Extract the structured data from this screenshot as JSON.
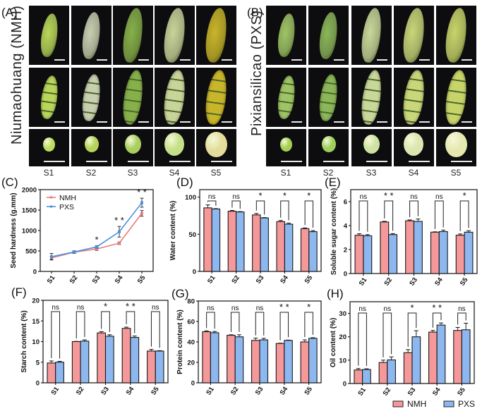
{
  "figure": {
    "panel_labels": [
      "(A)",
      "(B)",
      "(C)",
      "(D)",
      "(E)",
      "(F)",
      "(G)",
      "(H)"
    ],
    "photos": {
      "A": {
        "label": "(A)",
        "cultivar": "Niumaohuang (NMH)",
        "stages": [
          "S1",
          "S2",
          "S3",
          "S4",
          "S5"
        ],
        "rows": [
          "whole pod",
          "opened pod",
          "seed"
        ],
        "pod_colors": [
          "#b9d65a",
          "#c8cfb0",
          "#86b04a",
          "#c8d49a",
          "#c9b52a"
        ]
      },
      "B": {
        "label": "(B)",
        "cultivar": "Pixiansilicao (PXS)",
        "stages": [
          "S1",
          "S2",
          "S3",
          "S4",
          "S5"
        ],
        "rows": [
          "whole pod",
          "opened pod",
          "seed"
        ],
        "pod_colors": [
          "#9fc466",
          "#8bb65a",
          "#c9d89a",
          "#c9d67a",
          "#c8d46a"
        ]
      }
    },
    "legend": {
      "items": [
        {
          "name": "NMH",
          "color": "#f4989a"
        },
        {
          "name": "PXS",
          "color": "#8cb8ef"
        }
      ]
    },
    "colors": {
      "NMH": "#f4989a",
      "PXS": "#8cb8ef",
      "NMH_line": "#e8797b",
      "PXS_line": "#4a90e2"
    }
  },
  "chart_data": [
    {
      "id": "C",
      "label": "(C)",
      "type": "line",
      "title": "",
      "xlabel": "",
      "ylabel": "Seed hardness (g.mm)",
      "categories": [
        "S1",
        "S2",
        "S3",
        "S4",
        "S5"
      ],
      "ylim": [
        0,
        2000
      ],
      "yticks": [
        0,
        500,
        1000,
        1500,
        2000
      ],
      "series": [
        {
          "name": "NMH",
          "values": [
            330,
            470,
            550,
            690,
            1420
          ],
          "errors": [
            40,
            30,
            35,
            30,
            70
          ]
        },
        {
          "name": "PXS",
          "values": [
            360,
            475,
            600,
            970,
            1680
          ],
          "errors": [
            80,
            30,
            30,
            130,
            110
          ]
        }
      ],
      "significance": [
        "",
        "",
        "*",
        "**",
        "**"
      ],
      "legend": "top-left",
      "grid": false
    },
    {
      "id": "D",
      "label": "(D)",
      "type": "bar",
      "ylabel": "Water content (%)",
      "categories": [
        "S1",
        "S2",
        "S3",
        "S4",
        "S5"
      ],
      "ylim": [
        0,
        110
      ],
      "yticks": [
        0,
        50,
        100
      ],
      "series": [
        {
          "name": "NMH",
          "values": [
            85.5,
            81,
            76,
            67,
            57.5
          ],
          "errors": [
            4,
            1,
            2,
            1.5,
            1
          ]
        },
        {
          "name": "PXS",
          "values": [
            84,
            80,
            72,
            63.5,
            53.5
          ],
          "errors": [
            0.5,
            0.5,
            0.5,
            1.5,
            1.5
          ]
        }
      ],
      "significance": [
        "ns",
        "ns",
        "*",
        "*",
        "*"
      ]
    },
    {
      "id": "E",
      "label": "(E)",
      "type": "bar",
      "ylabel": "Soluble sugar content (%)",
      "categories": [
        "S1",
        "S2",
        "S3",
        "S4",
        "S5"
      ],
      "ylim": [
        0,
        7
      ],
      "yticks": [
        0,
        2,
        4,
        6
      ],
      "series": [
        {
          "name": "NMH",
          "values": [
            3.2,
            4.3,
            4.4,
            3.45,
            3.2
          ],
          "errors": [
            0.12,
            0.06,
            0.07,
            0.03,
            0.1
          ]
        },
        {
          "name": "PXS",
          "values": [
            3.15,
            3.25,
            4.35,
            3.5,
            3.45
          ],
          "errors": [
            0.1,
            0.08,
            0.2,
            0.12,
            0.12
          ]
        }
      ],
      "significance": [
        "ns",
        "**",
        "ns",
        "ns",
        "*"
      ]
    },
    {
      "id": "F",
      "label": "(F)",
      "type": "bar",
      "ylabel": "Starch content (%)",
      "categories": [
        "S1",
        "S2",
        "S3",
        "S4",
        "S5"
      ],
      "ylim": [
        0,
        20
      ],
      "yticks": [
        0,
        5,
        10,
        15,
        20
      ],
      "series": [
        {
          "name": "NMH",
          "values": [
            4.8,
            10.0,
            12.1,
            13.2,
            7.7
          ],
          "errors": [
            0.5,
            0.05,
            0.3,
            0.3,
            0.4
          ]
        },
        {
          "name": "PXS",
          "values": [
            5.0,
            10.1,
            11.3,
            11.0,
            7.7
          ],
          "errors": [
            0.2,
            0.3,
            0.35,
            0.35,
            0.1
          ]
        }
      ],
      "significance": [
        "ns",
        "ns",
        "*",
        "**",
        "ns"
      ]
    },
    {
      "id": "G",
      "label": "(G)",
      "type": "bar",
      "ylabel": "Protein content (%)",
      "categories": [
        "S1",
        "S2",
        "S3",
        "S4",
        "S5"
      ],
      "ylim": [
        0,
        80
      ],
      "yticks": [
        0,
        20,
        40,
        60,
        80
      ],
      "series": [
        {
          "name": "NMH",
          "values": [
            50,
            46.5,
            41.5,
            38.5,
            40
          ],
          "errors": [
            0.8,
            0.5,
            2.2,
            0.3,
            2.0
          ]
        },
        {
          "name": "PXS",
          "values": [
            49,
            45,
            42,
            41.5,
            43.5
          ],
          "errors": [
            1.2,
            2.0,
            1.5,
            0.3,
            0.6
          ]
        }
      ],
      "significance": [
        "ns",
        "ns",
        "ns",
        "**",
        "*"
      ]
    },
    {
      "id": "H",
      "label": "(H)",
      "type": "bar",
      "ylabel": "Oil content (%)",
      "categories": [
        "S1",
        "S2",
        "S3",
        "S4",
        "S5"
      ],
      "ylim": [
        0,
        35
      ],
      "yticks": [
        0,
        10,
        20,
        30
      ],
      "series": [
        {
          "name": "NMH",
          "values": [
            5.8,
            9.0,
            13.2,
            22.0,
            22.7
          ],
          "errors": [
            0.6,
            1.0,
            1.3,
            0.7,
            1.3
          ]
        },
        {
          "name": "PXS",
          "values": [
            6.0,
            10.1,
            20.0,
            25.0,
            23.0
          ],
          "errors": [
            0.3,
            1.3,
            2.6,
            0.9,
            2.8
          ]
        }
      ],
      "significance": [
        "ns",
        "ns",
        "*",
        "**",
        "ns"
      ],
      "legend": "bottom-right"
    }
  ]
}
